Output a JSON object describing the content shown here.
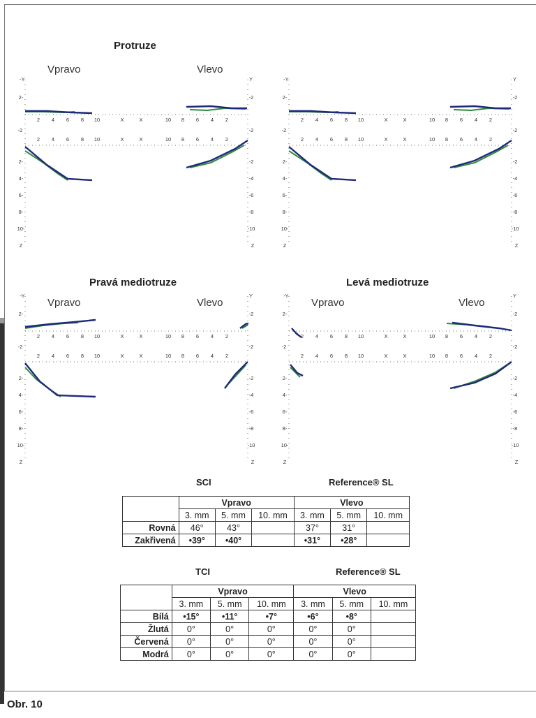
{
  "panels": [
    {
      "title": "Protruze",
      "left_label": "Vpravo",
      "right_label": "Vlevo"
    },
    {
      "title": "",
      "left_label": "",
      "right_label": ""
    },
    {
      "title": "Pravá mediotruze",
      "left_label": "Vpravo",
      "right_label": "Vlevo"
    },
    {
      "title": "Levá mediotruze",
      "left_label": "Vpravo",
      "right_label": "Vlevo"
    }
  ],
  "axis": {
    "y_label": "Y",
    "z_label": "Z",
    "x_label": "X",
    "x_ticks": [
      "2",
      "4",
      "6",
      "8",
      "10"
    ],
    "y_ticks": [
      "2",
      "2"
    ],
    "z_ticks": [
      "2",
      "4",
      "6",
      "8",
      "10"
    ]
  },
  "colors": {
    "green": "#2f8a3a",
    "navy": "#1d2a7a"
  },
  "table_sci": {
    "title": "SCI",
    "ref_title": "Reference® SL",
    "groups": [
      "Vpravo",
      "Vlevo"
    ],
    "columns": [
      "3. mm",
      "5. mm",
      "10. mm",
      "3. mm",
      "5. mm",
      "10. mm"
    ],
    "rows": [
      {
        "label": "Rovná",
        "cells": [
          "46°",
          "43°",
          "",
          "37°",
          "31°",
          ""
        ]
      },
      {
        "label": "Zakřivená",
        "cells": [
          "•39°",
          "•40°",
          "",
          "•31°",
          "•28°",
          ""
        ]
      }
    ]
  },
  "table_tci": {
    "title": "TCI",
    "ref_title": "Reference® SL",
    "groups": [
      "Vpravo",
      "Vlevo"
    ],
    "columns": [
      "3. mm",
      "5. mm",
      "10. mm",
      "3. mm",
      "5. mm",
      "10. mm"
    ],
    "rows": [
      {
        "label": "Bílá",
        "cells": [
          "•15°",
          "•11°",
          "•7°",
          "•6°",
          "•8°",
          ""
        ]
      },
      {
        "label": "Žlutá",
        "cells": [
          "0°",
          "0°",
          "0°",
          "0°",
          "0°",
          ""
        ]
      },
      {
        "label": "Červená",
        "cells": [
          "0°",
          "0°",
          "0°",
          "0°",
          "0°",
          ""
        ]
      },
      {
        "label": "Modrá",
        "cells": [
          "0°",
          "0°",
          "0°",
          "0°",
          "0°",
          ""
        ]
      }
    ]
  },
  "caption": "Obr. 10"
}
